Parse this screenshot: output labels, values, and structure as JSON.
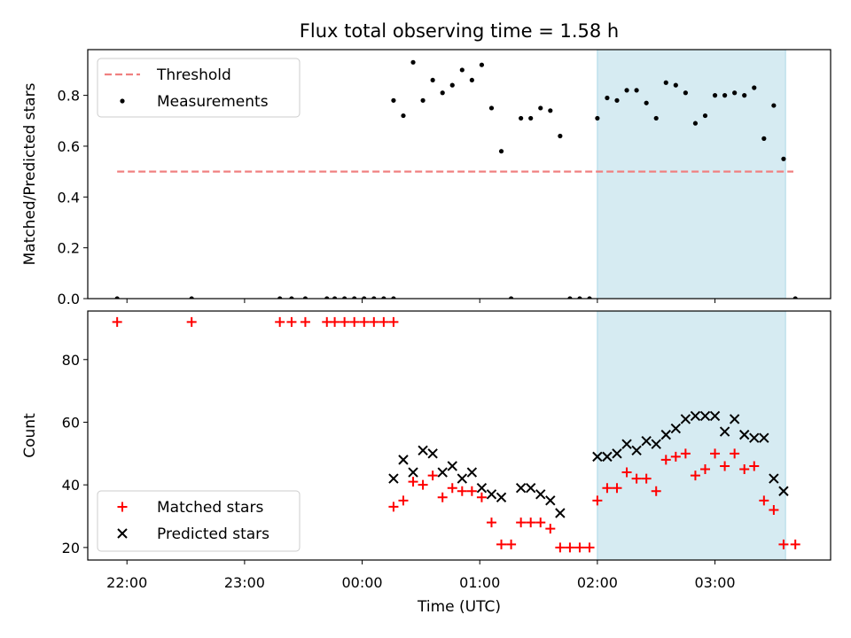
{
  "figure": {
    "title": "Flux total observing time = 1.58 h",
    "xlabel": "Time (UTC)",
    "xticks": [
      "22:00",
      "23:00",
      "00:00",
      "01:00",
      "02:00",
      "03:00"
    ]
  },
  "colors": {
    "threshold": "#f08080",
    "measurement": "#000000",
    "matched": "#ff0000",
    "predicted": "#000000",
    "span": "#add8e6"
  },
  "chart_data": [
    {
      "type": "scatter",
      "ylabel": "Matched/Predicted stars",
      "ylim": [
        0,
        0.98
      ],
      "yticks": [
        0.0,
        0.2,
        0.4,
        0.6,
        0.8
      ],
      "xlim": [
        "21:40",
        "03:59"
      ],
      "shaded_span": [
        "02:00",
        "03:36"
      ],
      "legend": {
        "placement": "upper-left",
        "entries": [
          "Threshold",
          "Measurements"
        ]
      },
      "threshold": {
        "name": "Threshold",
        "y": 0.5,
        "x": [
          "21:55",
          "03:40"
        ]
      },
      "series": [
        {
          "name": "Measurements",
          "points": [
            [
              "21:55",
              0.0
            ],
            [
              "22:33",
              0.0
            ],
            [
              "23:18",
              0.0
            ],
            [
              "23:24",
              0.0
            ],
            [
              "23:31",
              0.0
            ],
            [
              "23:42",
              0.0
            ],
            [
              "23:46",
              0.0
            ],
            [
              "23:51",
              0.0
            ],
            [
              "23:56",
              0.0
            ],
            [
              "00:01",
              0.0
            ],
            [
              "00:06",
              0.0
            ],
            [
              "00:11",
              0.0
            ],
            [
              "00:16",
              0.0
            ],
            [
              "00:16",
              0.78
            ],
            [
              "00:21",
              0.72
            ],
            [
              "00:26",
              0.93
            ],
            [
              "00:31",
              0.78
            ],
            [
              "00:36",
              0.86
            ],
            [
              "00:41",
              0.81
            ],
            [
              "00:46",
              0.84
            ],
            [
              "00:51",
              0.9
            ],
            [
              "00:56",
              0.86
            ],
            [
              "01:01",
              0.92
            ],
            [
              "01:06",
              0.75
            ],
            [
              "01:11",
              0.58
            ],
            [
              "01:16",
              0.0
            ],
            [
              "01:21",
              0.71
            ],
            [
              "01:26",
              0.71
            ],
            [
              "01:31",
              0.75
            ],
            [
              "01:36",
              0.74
            ],
            [
              "01:41",
              0.64
            ],
            [
              "01:46",
              0.0
            ],
            [
              "01:51",
              0.0
            ],
            [
              "01:56",
              0.0
            ],
            [
              "02:00",
              0.71
            ],
            [
              "02:05",
              0.79
            ],
            [
              "02:10",
              0.78
            ],
            [
              "02:15",
              0.82
            ],
            [
              "02:20",
              0.82
            ],
            [
              "02:25",
              0.77
            ],
            [
              "02:30",
              0.71
            ],
            [
              "02:35",
              0.85
            ],
            [
              "02:40",
              0.84
            ],
            [
              "02:45",
              0.81
            ],
            [
              "02:50",
              0.69
            ],
            [
              "02:55",
              0.72
            ],
            [
              "03:00",
              0.8
            ],
            [
              "03:05",
              0.8
            ],
            [
              "03:10",
              0.81
            ],
            [
              "03:15",
              0.8
            ],
            [
              "03:20",
              0.83
            ],
            [
              "03:25",
              0.63
            ],
            [
              "03:30",
              0.76
            ],
            [
              "03:35",
              0.55
            ],
            [
              "03:41",
              0.0
            ]
          ]
        }
      ]
    },
    {
      "type": "scatter",
      "ylabel": "Count",
      "ylim": [
        16,
        95.5
      ],
      "yticks": [
        20,
        40,
        60,
        80
      ],
      "xlim": [
        "21:40",
        "03:59"
      ],
      "shaded_span": [
        "02:00",
        "03:36"
      ],
      "legend": {
        "placement": "lower-left",
        "entries": [
          "Matched stars",
          "Predicted stars"
        ]
      },
      "series": [
        {
          "name": "Matched stars",
          "marker": "plus",
          "points": [
            [
              "21:55",
              92
            ],
            [
              "22:33",
              92
            ],
            [
              "23:18",
              92
            ],
            [
              "23:24",
              92
            ],
            [
              "23:31",
              92
            ],
            [
              "23:42",
              92
            ],
            [
              "23:46",
              92
            ],
            [
              "23:51",
              92
            ],
            [
              "23:56",
              92
            ],
            [
              "00:01",
              92
            ],
            [
              "00:06",
              92
            ],
            [
              "00:11",
              92
            ],
            [
              "00:16",
              92
            ],
            [
              "00:16",
              33
            ],
            [
              "00:21",
              35
            ],
            [
              "00:26",
              41
            ],
            [
              "00:31",
              40
            ],
            [
              "00:36",
              43
            ],
            [
              "00:41",
              36
            ],
            [
              "00:46",
              39
            ],
            [
              "00:51",
              38
            ],
            [
              "00:56",
              38
            ],
            [
              "01:01",
              36
            ],
            [
              "01:06",
              28
            ],
            [
              "01:11",
              21
            ],
            [
              "01:16",
              21
            ],
            [
              "01:21",
              28
            ],
            [
              "01:26",
              28
            ],
            [
              "01:31",
              28
            ],
            [
              "01:36",
              26
            ],
            [
              "01:41",
              20
            ],
            [
              "01:46",
              20
            ],
            [
              "01:51",
              20
            ],
            [
              "01:56",
              20
            ],
            [
              "02:00",
              35
            ],
            [
              "02:05",
              39
            ],
            [
              "02:10",
              39
            ],
            [
              "02:15",
              44
            ],
            [
              "02:20",
              42
            ],
            [
              "02:25",
              42
            ],
            [
              "02:30",
              38
            ],
            [
              "02:35",
              48
            ],
            [
              "02:40",
              49
            ],
            [
              "02:45",
              50
            ],
            [
              "02:50",
              43
            ],
            [
              "02:55",
              45
            ],
            [
              "03:00",
              50
            ],
            [
              "03:05",
              46
            ],
            [
              "03:10",
              50
            ],
            [
              "03:15",
              45
            ],
            [
              "03:20",
              46
            ],
            [
              "03:25",
              35
            ],
            [
              "03:30",
              32
            ],
            [
              "03:35",
              21
            ],
            [
              "03:41",
              21
            ]
          ]
        },
        {
          "name": "Predicted stars",
          "marker": "x",
          "points": [
            [
              "00:16",
              42
            ],
            [
              "00:21",
              48
            ],
            [
              "00:26",
              44
            ],
            [
              "00:31",
              51
            ],
            [
              "00:36",
              50
            ],
            [
              "00:41",
              44
            ],
            [
              "00:46",
              46
            ],
            [
              "00:51",
              42
            ],
            [
              "00:56",
              44
            ],
            [
              "01:01",
              39
            ],
            [
              "01:06",
              37
            ],
            [
              "01:11",
              36
            ],
            [
              "01:21",
              39
            ],
            [
              "01:26",
              39
            ],
            [
              "01:31",
              37
            ],
            [
              "01:36",
              35
            ],
            [
              "01:41",
              31
            ],
            [
              "02:00",
              49
            ],
            [
              "02:05",
              49
            ],
            [
              "02:10",
              50
            ],
            [
              "02:15",
              53
            ],
            [
              "02:20",
              51
            ],
            [
              "02:25",
              54
            ],
            [
              "02:30",
              53
            ],
            [
              "02:35",
              56
            ],
            [
              "02:40",
              58
            ],
            [
              "02:45",
              61
            ],
            [
              "02:50",
              62
            ],
            [
              "02:55",
              62
            ],
            [
              "03:00",
              62
            ],
            [
              "03:05",
              57
            ],
            [
              "03:10",
              61
            ],
            [
              "03:15",
              56
            ],
            [
              "03:20",
              55
            ],
            [
              "03:25",
              55
            ],
            [
              "03:30",
              42
            ],
            [
              "03:35",
              38
            ]
          ]
        }
      ]
    }
  ]
}
